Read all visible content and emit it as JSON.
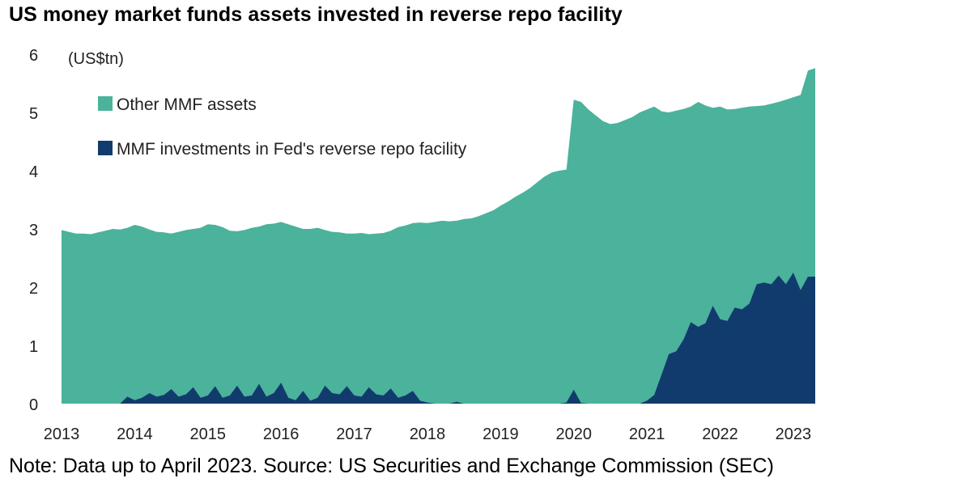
{
  "chart_data": {
    "type": "area",
    "stacked": true,
    "title": "US money market funds assets invested in reverse repo facility",
    "ylabel": "(US$tn)",
    "xlabel": "",
    "ylim": [
      0,
      6
    ],
    "xlim": [
      2013.0,
      2023.3
    ],
    "yticks": [
      "0",
      "1",
      "2",
      "3",
      "4",
      "5",
      "6"
    ],
    "xticks": [
      "2013",
      "2014",
      "2015",
      "2016",
      "2017",
      "2018",
      "2019",
      "2020",
      "2021",
      "2022",
      "2023"
    ],
    "grid": false,
    "legend_position": "top-left",
    "note": "Note: Data up to April 2023. Source: US Securities and Exchange Commission (SEC)",
    "x": [
      2013.0,
      2013.1,
      2013.2,
      2013.3,
      2013.4,
      2013.5,
      2013.6,
      2013.7,
      2013.8,
      2013.9,
      2014.0,
      2014.1,
      2014.2,
      2014.3,
      2014.4,
      2014.5,
      2014.6,
      2014.7,
      2014.8,
      2014.9,
      2015.0,
      2015.1,
      2015.2,
      2015.3,
      2015.4,
      2015.5,
      2015.6,
      2015.7,
      2015.8,
      2015.9,
      2016.0,
      2016.1,
      2016.2,
      2016.3,
      2016.4,
      2016.5,
      2016.6,
      2016.7,
      2016.8,
      2016.9,
      2017.0,
      2017.1,
      2017.2,
      2017.3,
      2017.4,
      2017.5,
      2017.6,
      2017.7,
      2017.8,
      2017.9,
      2018.0,
      2018.1,
      2018.2,
      2018.3,
      2018.4,
      2018.5,
      2018.6,
      2018.7,
      2018.8,
      2018.9,
      2019.0,
      2019.1,
      2019.2,
      2019.3,
      2019.4,
      2019.5,
      2019.6,
      2019.7,
      2019.8,
      2019.9,
      2020.0,
      2020.1,
      2020.2,
      2020.3,
      2020.4,
      2020.5,
      2020.6,
      2020.7,
      2020.8,
      2020.9,
      2021.0,
      2021.1,
      2021.2,
      2021.3,
      2021.4,
      2021.5,
      2021.6,
      2021.7,
      2021.8,
      2021.9,
      2022.0,
      2022.1,
      2022.2,
      2022.3,
      2022.4,
      2022.5,
      2022.6,
      2022.7,
      2022.8,
      2022.9,
      2023.0,
      2023.1,
      2023.2,
      2023.3
    ],
    "series": [
      {
        "name": "Other MMF assets",
        "color": "#4BB29B",
        "role": "total_minus_rrp",
        "total": [
          2.98,
          2.95,
          2.92,
          2.92,
          2.91,
          2.94,
          2.97,
          3.0,
          2.99,
          3.02,
          3.07,
          3.04,
          2.99,
          2.95,
          2.94,
          2.92,
          2.95,
          2.98,
          3.0,
          3.02,
          3.08,
          3.07,
          3.03,
          2.97,
          2.96,
          2.98,
          3.02,
          3.04,
          3.08,
          3.09,
          3.12,
          3.08,
          3.04,
          3.0,
          3.0,
          3.02,
          2.98,
          2.95,
          2.94,
          2.92,
          2.92,
          2.93,
          2.91,
          2.92,
          2.93,
          2.97,
          3.03,
          3.06,
          3.1,
          3.11,
          3.1,
          3.12,
          3.14,
          3.13,
          3.14,
          3.17,
          3.18,
          3.22,
          3.27,
          3.32,
          3.4,
          3.47,
          3.55,
          3.62,
          3.7,
          3.8,
          3.9,
          3.97,
          4.0,
          4.02,
          5.22,
          5.18,
          5.05,
          4.95,
          4.85,
          4.8,
          4.82,
          4.87,
          4.92,
          5.0,
          5.05,
          5.1,
          5.02,
          5.0,
          5.03,
          5.06,
          5.1,
          5.18,
          5.12,
          5.08,
          5.1,
          5.05,
          5.06,
          5.08,
          5.1,
          5.11,
          5.12,
          5.15,
          5.18,
          5.22,
          5.26,
          5.3,
          5.72,
          5.76
        ]
      },
      {
        "name": "MMF investments in Fed's reverse repo facility",
        "color": "#123B6D",
        "values": [
          0.0,
          0.0,
          0.0,
          0.0,
          0.0,
          0.0,
          0.0,
          0.0,
          0.0,
          0.12,
          0.06,
          0.1,
          0.18,
          0.12,
          0.15,
          0.25,
          0.12,
          0.16,
          0.28,
          0.1,
          0.14,
          0.3,
          0.1,
          0.14,
          0.31,
          0.12,
          0.14,
          0.34,
          0.12,
          0.18,
          0.36,
          0.1,
          0.06,
          0.22,
          0.05,
          0.1,
          0.31,
          0.18,
          0.16,
          0.3,
          0.14,
          0.12,
          0.28,
          0.16,
          0.14,
          0.26,
          0.1,
          0.14,
          0.22,
          0.05,
          0.02,
          0.0,
          0.0,
          0.0,
          0.03,
          0.0,
          0.0,
          0.0,
          0.0,
          0.0,
          0.0,
          0.0,
          0.0,
          0.0,
          0.0,
          0.0,
          0.0,
          0.0,
          0.0,
          0.02,
          0.24,
          0.01,
          0.0,
          0.0,
          0.0,
          0.0,
          0.0,
          0.0,
          0.0,
          0.0,
          0.05,
          0.15,
          0.5,
          0.85,
          0.9,
          1.1,
          1.4,
          1.32,
          1.38,
          1.68,
          1.45,
          1.42,
          1.65,
          1.62,
          1.72,
          2.05,
          2.08,
          2.05,
          2.2,
          2.05,
          2.25,
          1.95,
          2.18,
          2.18
        ]
      }
    ]
  }
}
